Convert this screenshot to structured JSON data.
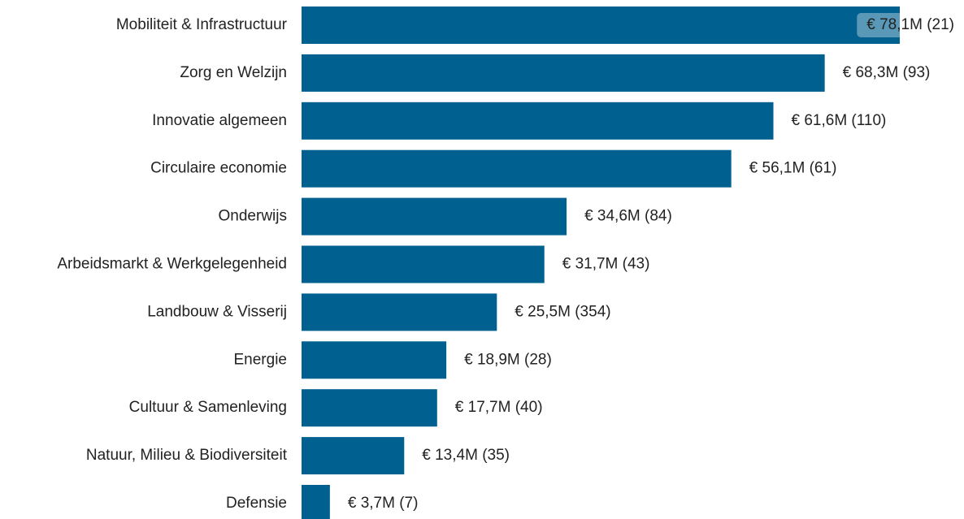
{
  "chart_data": {
    "type": "bar",
    "orientation": "horizontal",
    "color": "#006191",
    "categories": [
      "Mobiliteit & Infrastructuur",
      "Zorg en Welzijn",
      "Innovatie algemeen",
      "Circulaire economie",
      "Onderwijs",
      "Arbeidsmarkt & Werkgelegenheid",
      "Landbouw & Visserij",
      "Energie",
      "Cultuur & Samenleving",
      "Natuur, Milieu & Biodiversiteit",
      "Defensie"
    ],
    "values": [
      78.1,
      68.3,
      61.6,
      56.1,
      34.6,
      31.7,
      25.5,
      18.9,
      17.7,
      13.4,
      3.7
    ],
    "value_labels": [
      "€ 78,1M (21)",
      "€ 68,3M (93)",
      "€ 61,6M (110)",
      "€ 56,1M (61)",
      "€ 34,6M (84)",
      "€ 31,7M (43)",
      "€ 25,5M (354)",
      "€ 18,9M (28)",
      "€ 17,7M (40)",
      "€ 13,4M (35)",
      "€ 3,7M (7)"
    ]
  }
}
